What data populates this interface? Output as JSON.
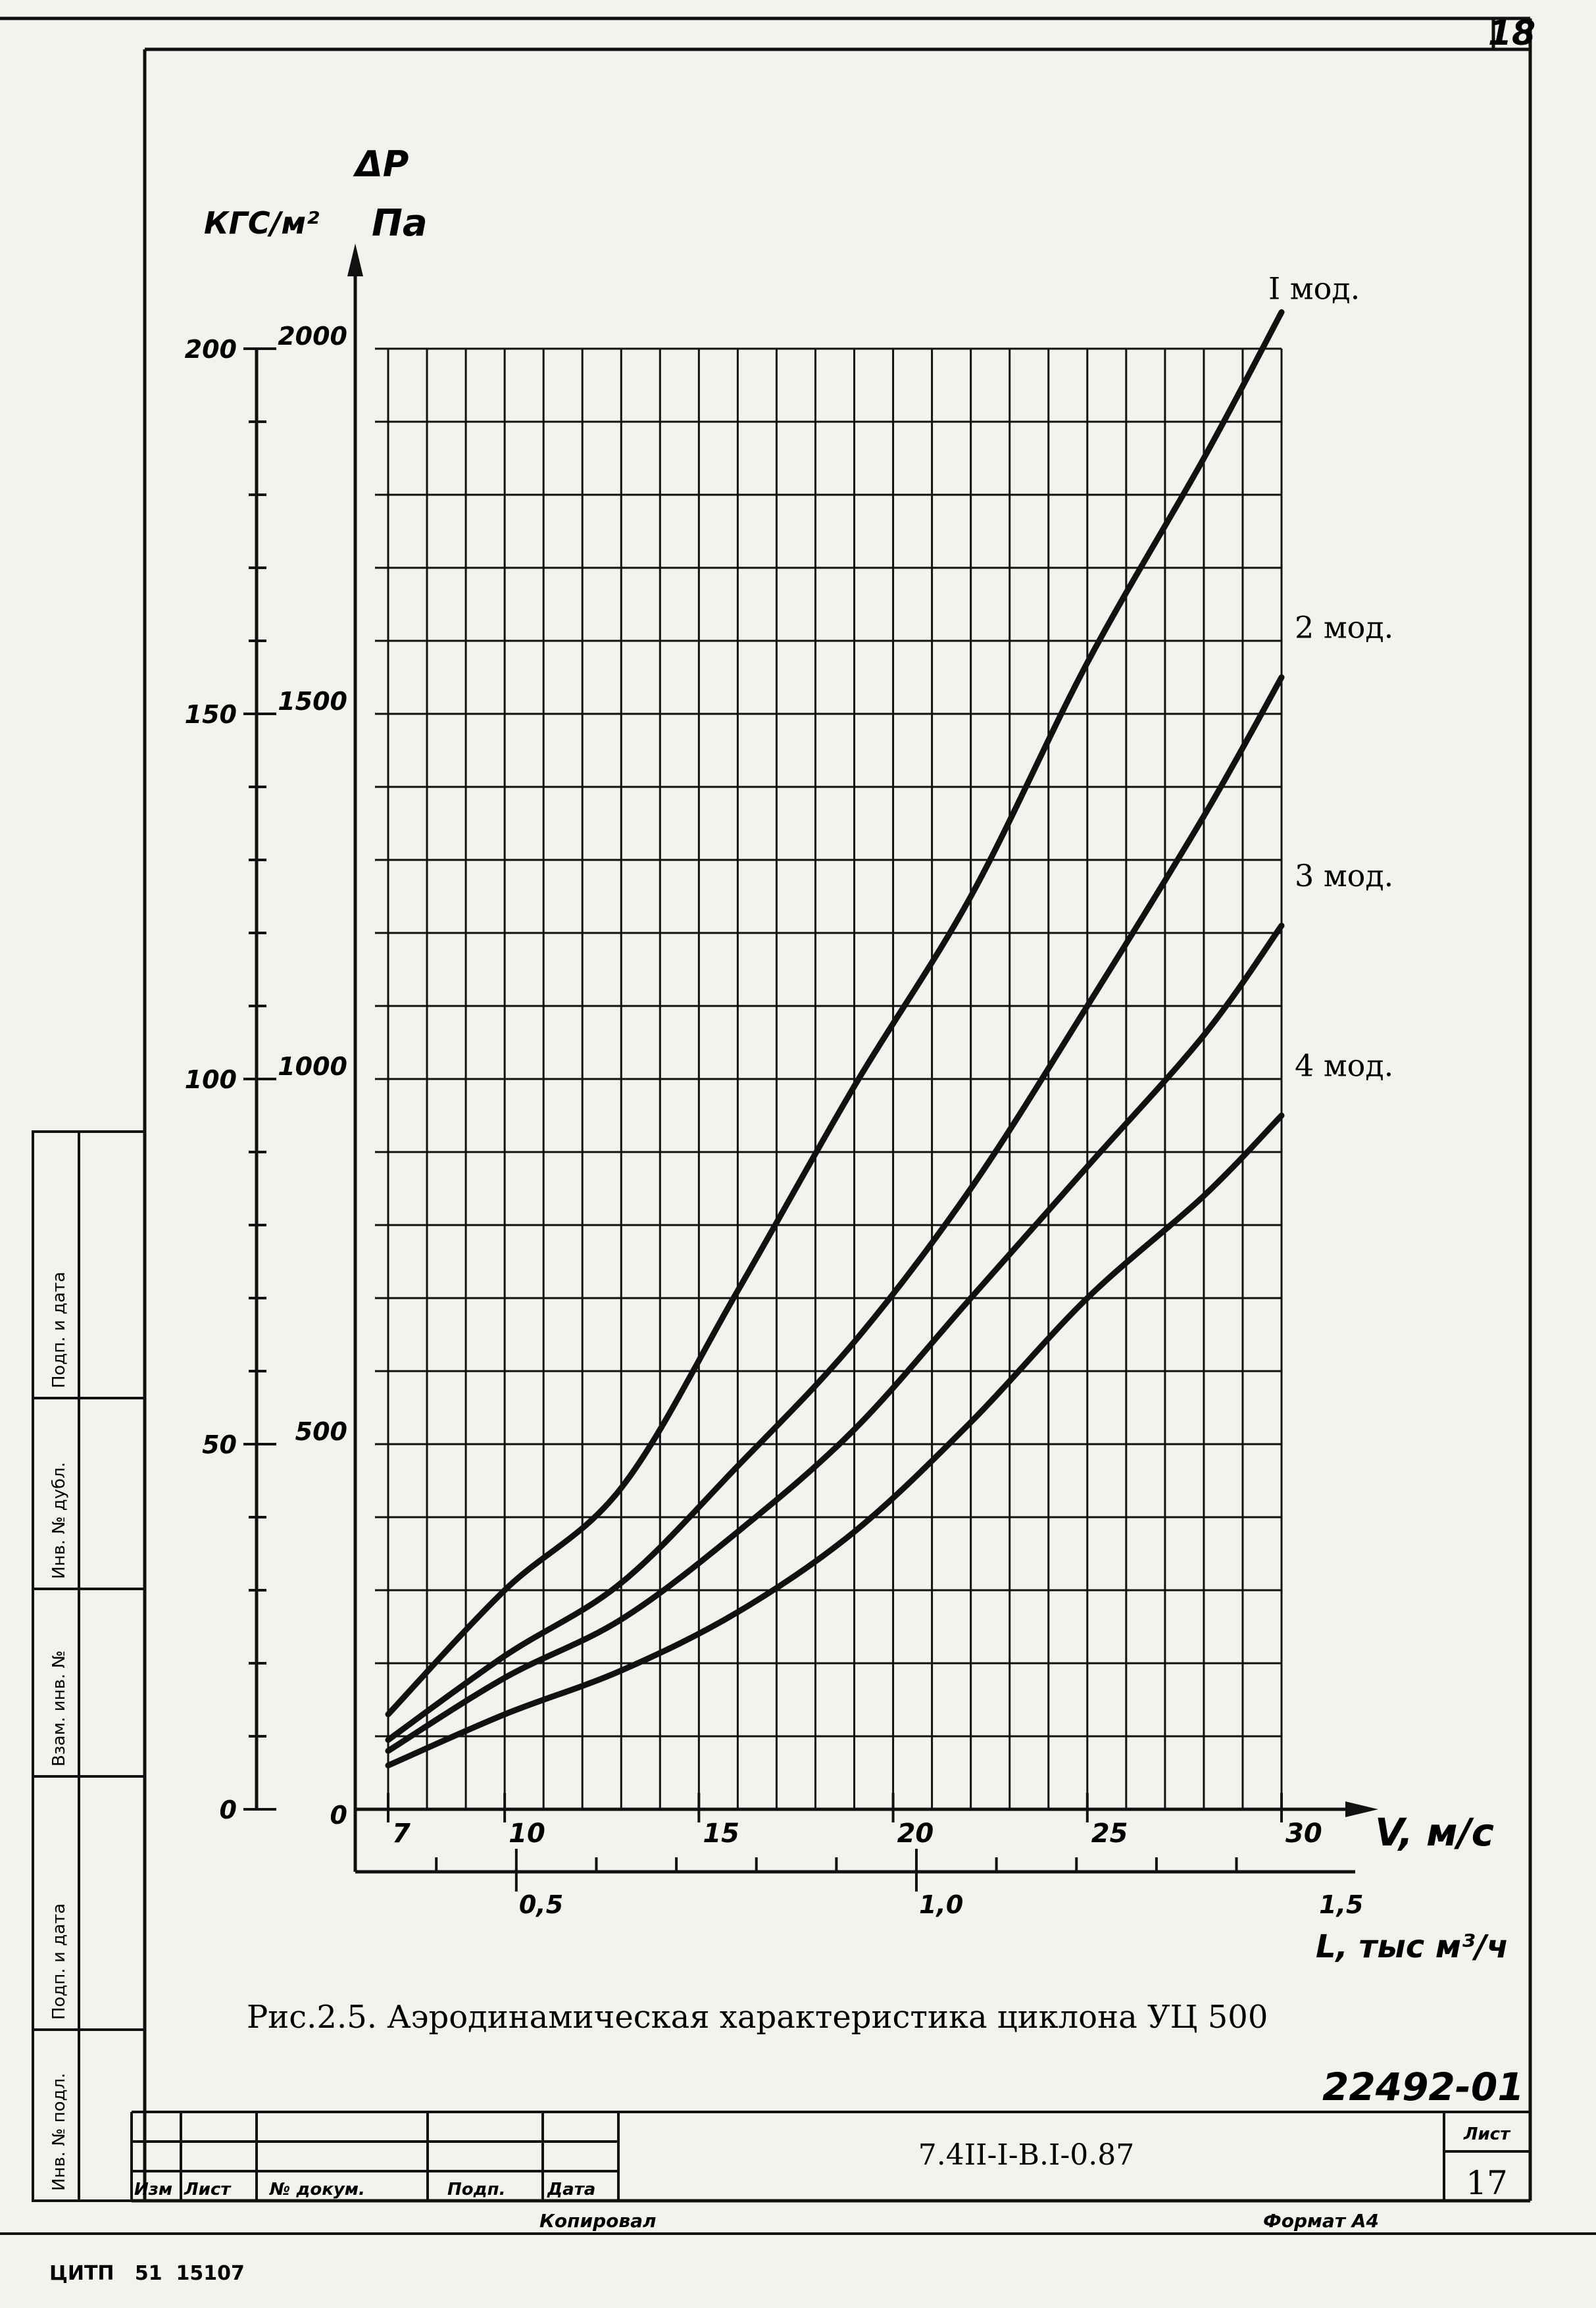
{
  "sheet": {
    "corner_page_number": "18",
    "caption": "Рис.2.5. Аэродинамическая характеристика циклона УЦ 500",
    "inventory_number": "22492-01",
    "designation": "7.4II-I-B.I-0.87",
    "sheet_label": "Лист",
    "sheet_number": "17",
    "copied_label": "Копировал",
    "format_label": "Формат А4",
    "footer_code": "ЦИТП   51  15107",
    "title_block_columns": [
      "Изм",
      "Лист",
      "№ докум.",
      "Подп.",
      "Дата"
    ],
    "side_stamp_labels": [
      "Инв. № подл.",
      "Подп. и дата",
      "Взам. инв. №",
      "Инв. № дубл.",
      "Подп. и дата"
    ]
  },
  "chart_data": {
    "type": "line",
    "title": "",
    "ylabel_symbol": "ΔP",
    "ylabel_units_kgf": "КГС/м²",
    "ylabel_units_pa": "Па",
    "xlabel_velocity": "V, м/с",
    "xlabel_flow": "L, тыс м³/ч",
    "x_ticks_velocity": [
      "7",
      "10",
      "15",
      "20",
      "25",
      "30"
    ],
    "x_ticks_flow": [
      "0,5",
      "1,0",
      "1,5"
    ],
    "y_ticks_pa": [
      "0",
      "500",
      "1000",
      "1500",
      "2000"
    ],
    "y_ticks_kgf": [
      "0",
      "50",
      "100",
      "150",
      "200"
    ],
    "xlim": [
      7,
      30
    ],
    "ylim": [
      0,
      2000
    ],
    "grid": true,
    "x": [
      7,
      10,
      13,
      16,
      19,
      22,
      25,
      28,
      30
    ],
    "series": [
      {
        "name": "I мод.",
        "values": [
          130,
          300,
          440,
          710,
          990,
          1250,
          1570,
          1850,
          2050
        ]
      },
      {
        "name": "2 мод.",
        "values": [
          95,
          210,
          310,
          470,
          640,
          850,
          1100,
          1360,
          1550
        ]
      },
      {
        "name": "3 мод.",
        "values": [
          80,
          180,
          260,
          380,
          520,
          700,
          880,
          1060,
          1210
        ]
      },
      {
        "name": "4 мод.",
        "values": [
          60,
          130,
          190,
          270,
          380,
          530,
          700,
          840,
          950
        ]
      }
    ]
  }
}
